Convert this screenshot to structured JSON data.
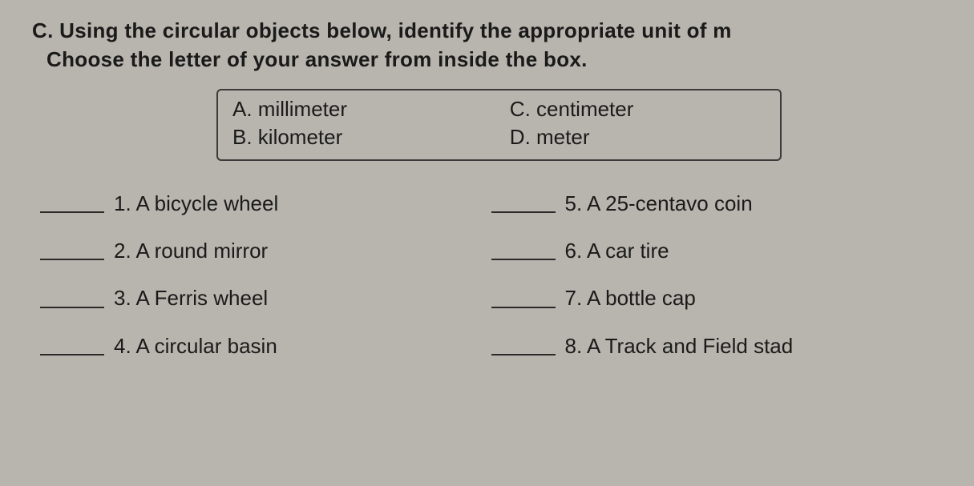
{
  "instruction": {
    "line1": "C. Using the circular objects below, identify the appropriate unit of m",
    "line2": "Choose the letter of your answer from inside the box."
  },
  "choices": {
    "a": "A. millimeter",
    "b": "B. kilometer",
    "c": "C. centimeter",
    "d": "D. meter"
  },
  "questions": {
    "q1": "1. A bicycle wheel",
    "q2": "2. A round mirror",
    "q3": "3. A Ferris wheel",
    "q4": "4. A circular basin",
    "q5": "5. A 25-centavo coin",
    "q6": "6. A car tire",
    "q7": "7. A bottle cap",
    "q8": "8. A Track and Field stad"
  },
  "style": {
    "background_color": "#b8b5ae",
    "text_color": "#1a1a1a",
    "border_color": "#3a3a3a",
    "font_size_pt": 26,
    "font_family": "Arial"
  }
}
